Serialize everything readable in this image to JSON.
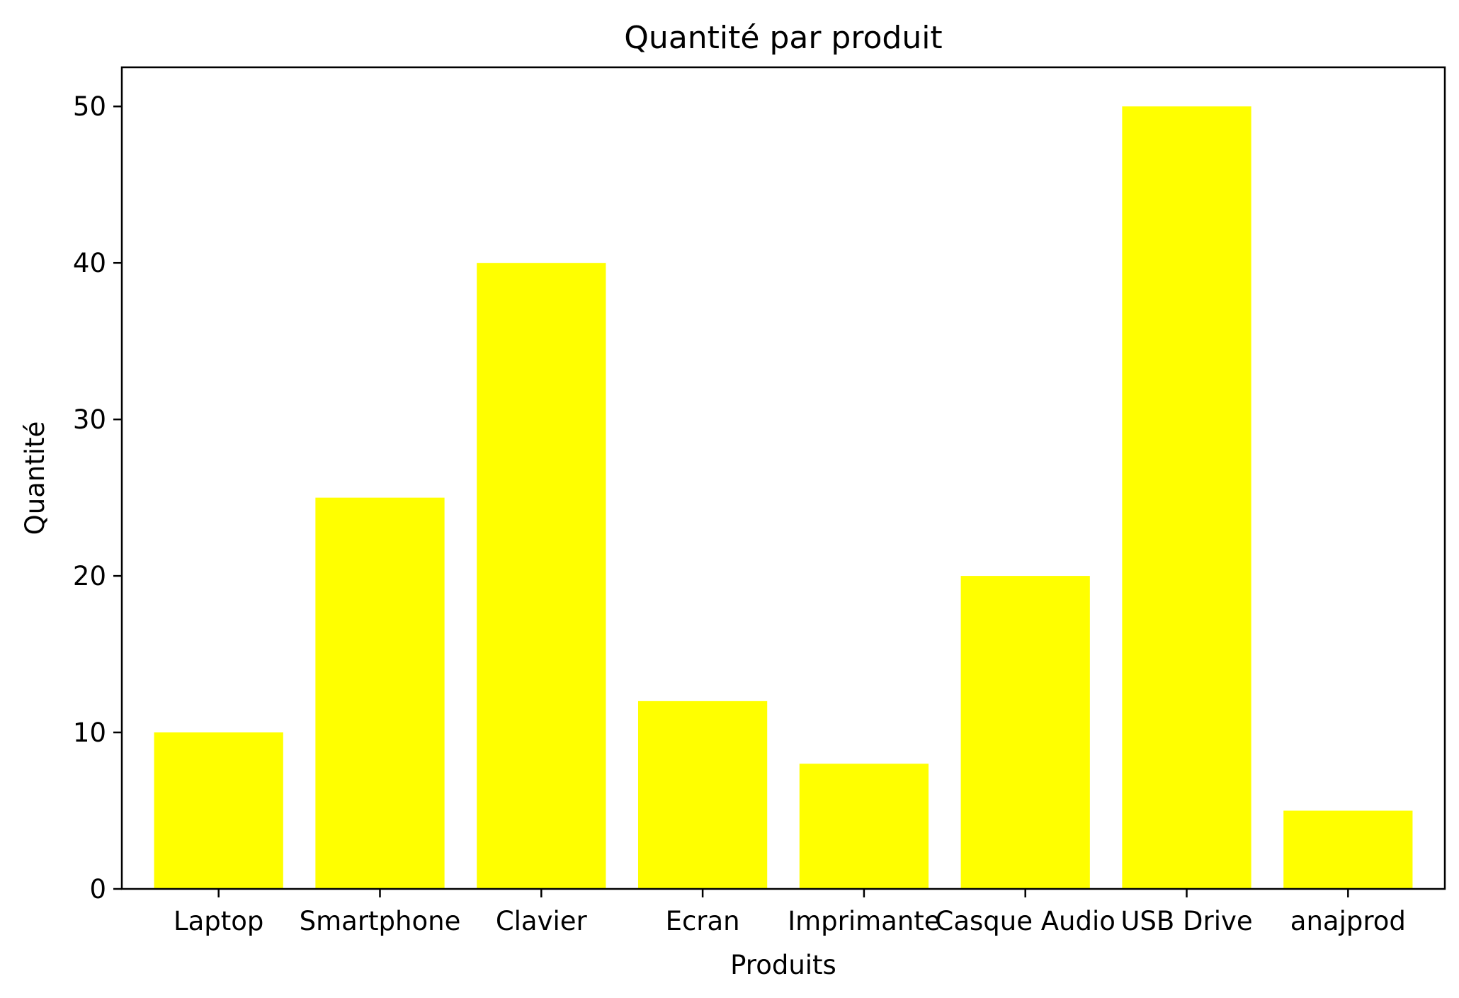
{
  "chart_data": {
    "type": "bar",
    "title": "Quantité par produit",
    "xlabel": "Produits",
    "ylabel": "Quantité",
    "categories": [
      "Laptop",
      "Smartphone",
      "Clavier",
      "Ecran",
      "Imprimante",
      "Casque Audio",
      "USB Drive",
      "anajprod"
    ],
    "values": [
      10,
      25,
      40,
      12,
      8,
      20,
      50,
      5
    ],
    "ylim": [
      0,
      52.5
    ],
    "yticks": [
      0,
      10,
      20,
      30,
      40,
      50
    ],
    "bar_color": "#ffff00",
    "grid": false,
    "legend": "none"
  }
}
